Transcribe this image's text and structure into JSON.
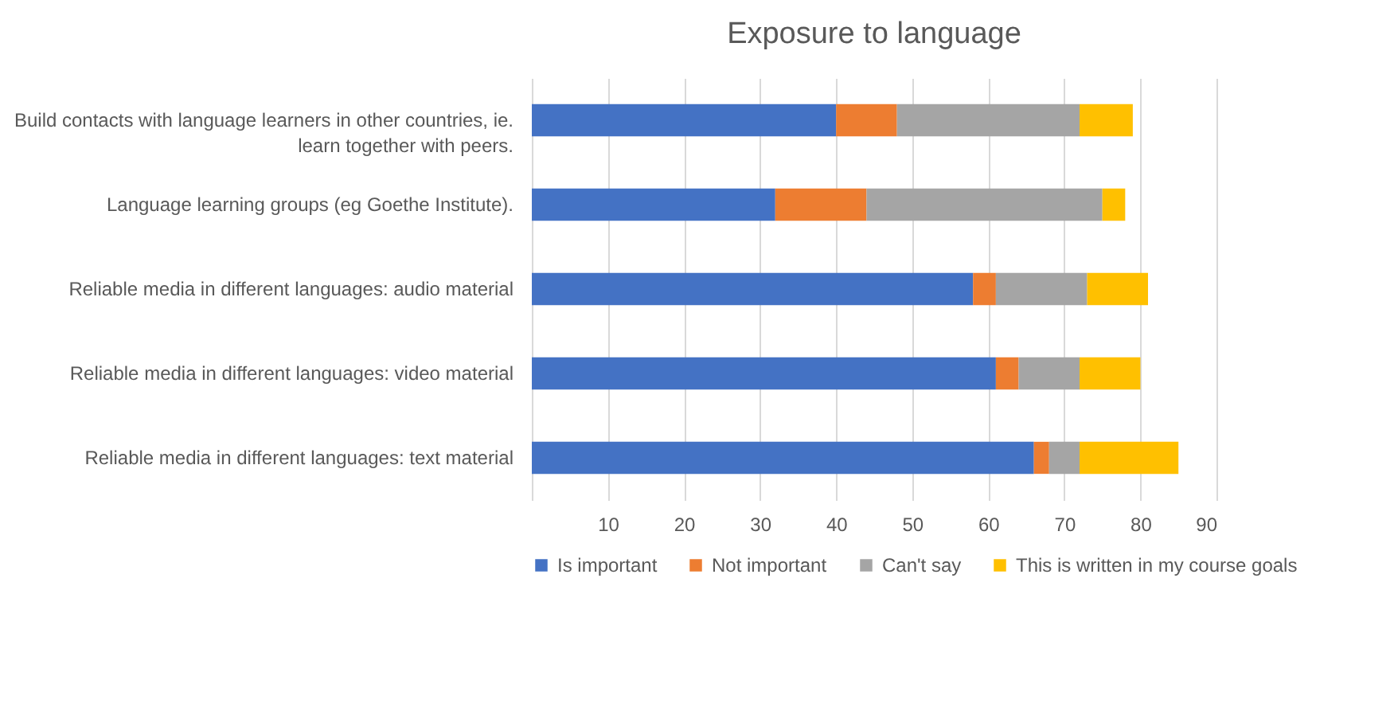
{
  "chart_data": {
    "type": "bar",
    "title": "Exposure to language",
    "orientation": "horizontal",
    "stacked": true,
    "categories": [
      "Build contacts with language learners in other countries, ie. learn together with peers.",
      "Language learning groups (eg Goethe Institute).",
      "Reliable media in different languages: audio material",
      "Reliable media in different languages: video material",
      "Reliable media in different languages: text material"
    ],
    "series": [
      {
        "name": "Is important",
        "color": "#4472c4",
        "values": [
          40,
          32,
          58,
          61,
          66
        ]
      },
      {
        "name": "Not important",
        "color": "#ed7d31",
        "values": [
          8,
          12,
          3,
          3,
          2
        ]
      },
      {
        "name": "Can't say",
        "color": "#a5a5a5",
        "values": [
          24,
          31,
          12,
          8,
          4
        ]
      },
      {
        "name": "This is written in my course goals",
        "color": "#ffc000",
        "values": [
          7,
          3,
          8,
          8,
          13
        ]
      }
    ],
    "xlim": [
      0,
      90
    ],
    "xticks": [
      {
        "value": 0,
        "label": null
      },
      10,
      20,
      30,
      40,
      50,
      60,
      70,
      80,
      90
    ],
    "grid": "x",
    "legend": "bottom"
  }
}
